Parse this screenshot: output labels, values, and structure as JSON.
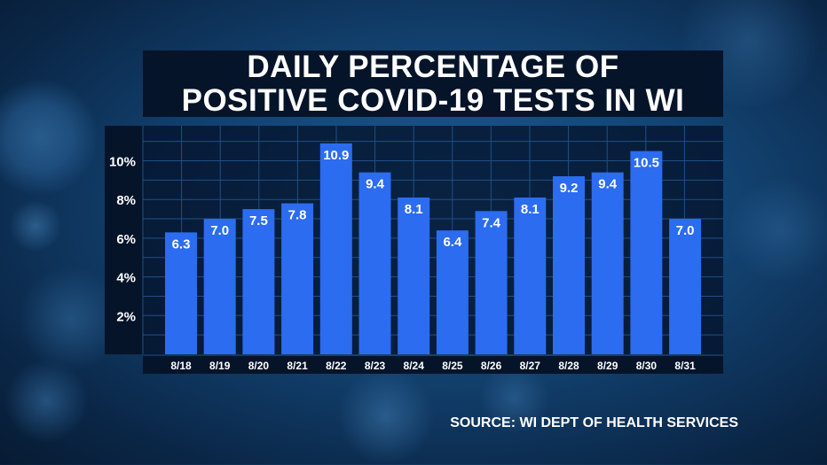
{
  "chart_data": {
    "type": "bar",
    "title_lines": [
      "DAILY PERCENTAGE OF",
      "POSITIVE COVID-19 TESTS IN WI"
    ],
    "categories": [
      "8/18",
      "8/19",
      "8/20",
      "8/21",
      "8/22",
      "8/23",
      "8/24",
      "8/25",
      "8/26",
      "8/27",
      "8/28",
      "8/29",
      "8/30",
      "8/31"
    ],
    "values": [
      6.3,
      7.0,
      7.5,
      7.8,
      10.9,
      9.4,
      8.1,
      6.4,
      7.4,
      8.1,
      9.2,
      9.4,
      10.5,
      7.0
    ],
    "value_labels": [
      "6.3",
      "7.0",
      "7.5",
      "7.8",
      "10.9",
      "9.4",
      "8.1",
      "6.4",
      "7.4",
      "8.1",
      "9.2",
      "9.4",
      "10.5",
      "7.0"
    ],
    "y_ticks": [
      2,
      4,
      6,
      8,
      10
    ],
    "y_tick_labels": [
      "2%",
      "4%",
      "6%",
      "8%",
      "10%"
    ],
    "ylim": [
      0,
      11.8
    ],
    "xlabel": "",
    "ylabel": "",
    "grid": true,
    "bar_color": "#2b6cf0"
  },
  "source": "SOURCE: WI DEPT OF HEALTH SERVICES"
}
